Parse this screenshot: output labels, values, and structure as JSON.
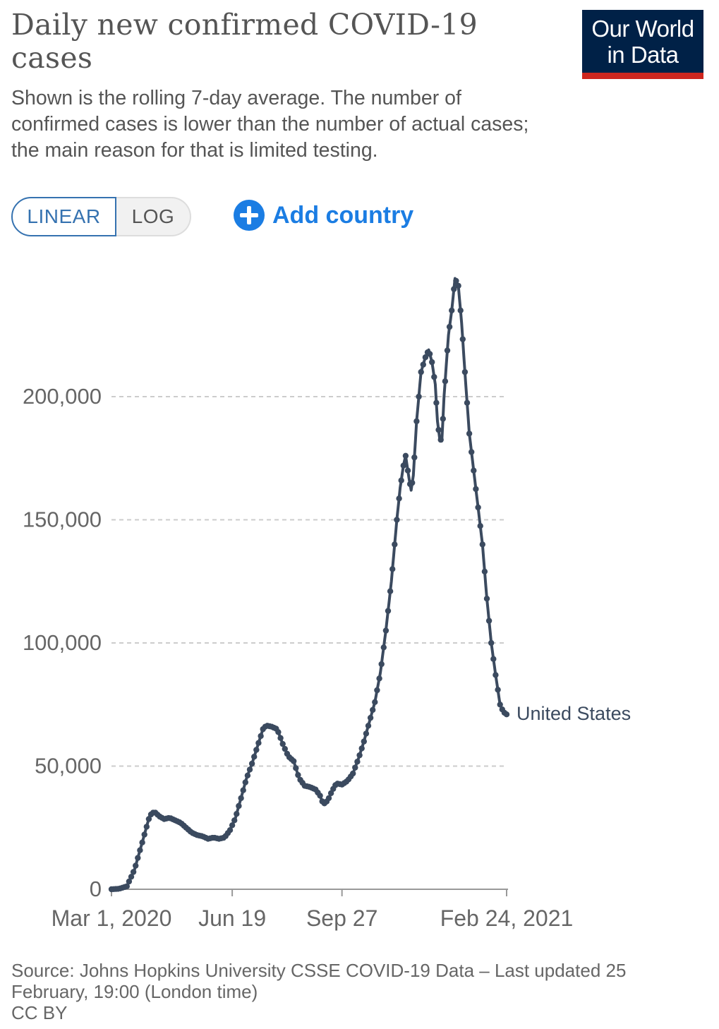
{
  "header": {
    "title": "Daily new confirmed COVID-19 cases",
    "subtitle": "Shown is the rolling 7-day average. The number of confirmed cases is lower than the number of actual cases; the main reason for that is limited testing.",
    "logo_line1": "Our World",
    "logo_line2": "in Data"
  },
  "controls": {
    "linear_label": "LINEAR",
    "log_label": "LOG",
    "selected_scale": "linear",
    "add_country_label": "Add country",
    "accent_color": "#1b7de3"
  },
  "colors": {
    "logo_bg": "#002147",
    "logo_stripe": "#ce261e",
    "series_line": "#3b4a5f"
  },
  "chart_data": {
    "type": "line",
    "x_axis": {
      "start": "2020-03-01",
      "end": "2021-02-24",
      "ticks": [
        "Mar 1, 2020",
        "Jun 19",
        "Sep 27",
        "Feb 24, 2021"
      ]
    },
    "y_axis": {
      "min": 0,
      "max": 250000,
      "ticks": [
        "0",
        "50,000",
        "100,000",
        "150,000",
        "200,000"
      ]
    },
    "grid": true,
    "legend": "inline-end",
    "series": [
      {
        "name": "United States",
        "points": [
          [
            "2020-03-01",
            0
          ],
          [
            "2020-03-08",
            200
          ],
          [
            "2020-03-15",
            1200
          ],
          [
            "2020-03-22",
            8000
          ],
          [
            "2020-03-29",
            19000
          ],
          [
            "2020-04-03",
            27000
          ],
          [
            "2020-04-05",
            30000
          ],
          [
            "2020-04-09",
            31500
          ],
          [
            "2020-04-14",
            29500
          ],
          [
            "2020-04-18",
            28500
          ],
          [
            "2020-04-23",
            29000
          ],
          [
            "2020-04-28",
            28000
          ],
          [
            "2020-05-03",
            27000
          ],
          [
            "2020-05-08",
            25000
          ],
          [
            "2020-05-13",
            23000
          ],
          [
            "2020-05-18",
            22000
          ],
          [
            "2020-05-23",
            21500
          ],
          [
            "2020-05-28",
            20500
          ],
          [
            "2020-06-02",
            21000
          ],
          [
            "2020-06-07",
            20500
          ],
          [
            "2020-06-12",
            21000
          ],
          [
            "2020-06-17",
            24000
          ],
          [
            "2020-06-22",
            29000
          ],
          [
            "2020-06-27",
            37000
          ],
          [
            "2020-07-02",
            45000
          ],
          [
            "2020-07-07",
            51000
          ],
          [
            "2020-07-12",
            58000
          ],
          [
            "2020-07-17",
            65000
          ],
          [
            "2020-07-20",
            66500
          ],
          [
            "2020-07-25",
            66000
          ],
          [
            "2020-07-30",
            65000
          ],
          [
            "2020-08-04",
            59000
          ],
          [
            "2020-08-09",
            54000
          ],
          [
            "2020-08-14",
            52000
          ],
          [
            "2020-08-19",
            45000
          ],
          [
            "2020-08-24",
            42000
          ],
          [
            "2020-08-29",
            41500
          ],
          [
            "2020-09-03",
            40500
          ],
          [
            "2020-09-07",
            38000
          ],
          [
            "2020-09-10",
            34500
          ],
          [
            "2020-09-14",
            36000
          ],
          [
            "2020-09-18",
            40000
          ],
          [
            "2020-09-22",
            43000
          ],
          [
            "2020-09-27",
            42500
          ],
          [
            "2020-10-02",
            44000
          ],
          [
            "2020-10-07",
            47000
          ],
          [
            "2020-10-12",
            53000
          ],
          [
            "2020-10-17",
            60000
          ],
          [
            "2020-10-22",
            68000
          ],
          [
            "2020-10-27",
            76000
          ],
          [
            "2020-11-01",
            88000
          ],
          [
            "2020-11-06",
            105000
          ],
          [
            "2020-11-11",
            125000
          ],
          [
            "2020-11-16",
            150000
          ],
          [
            "2020-11-19",
            163000
          ],
          [
            "2020-11-22",
            172000
          ],
          [
            "2020-11-24",
            176000
          ],
          [
            "2020-11-27",
            167000
          ],
          [
            "2020-11-29",
            162000
          ],
          [
            "2020-12-01",
            168000
          ],
          [
            "2020-12-04",
            190000
          ],
          [
            "2020-12-08",
            210000
          ],
          [
            "2020-12-12",
            216000
          ],
          [
            "2020-12-15",
            219000
          ],
          [
            "2020-12-18",
            214000
          ],
          [
            "2020-12-21",
            205000
          ],
          [
            "2020-12-23",
            190000
          ],
          [
            "2020-12-25",
            183000
          ],
          [
            "2020-12-27",
            182000
          ],
          [
            "2020-12-29",
            200000
          ],
          [
            "2021-01-02",
            225000
          ],
          [
            "2021-01-05",
            235000
          ],
          [
            "2021-01-08",
            248000
          ],
          [
            "2021-01-11",
            245000
          ],
          [
            "2021-01-14",
            230000
          ],
          [
            "2021-01-17",
            210000
          ],
          [
            "2021-01-21",
            185000
          ],
          [
            "2021-01-25",
            170000
          ],
          [
            "2021-01-29",
            155000
          ],
          [
            "2021-02-02",
            140000
          ],
          [
            "2021-02-06",
            118000
          ],
          [
            "2021-02-10",
            100000
          ],
          [
            "2021-02-14",
            87000
          ],
          [
            "2021-02-18",
            75000
          ],
          [
            "2021-02-21",
            72000
          ],
          [
            "2021-02-24",
            71000
          ]
        ]
      }
    ]
  },
  "footer": {
    "source_line1": "Source: Johns Hopkins University CSSE COVID-19 Data – Last updated 25",
    "source_line2": "February, 19:00 (London time)",
    "license": "CC BY"
  }
}
